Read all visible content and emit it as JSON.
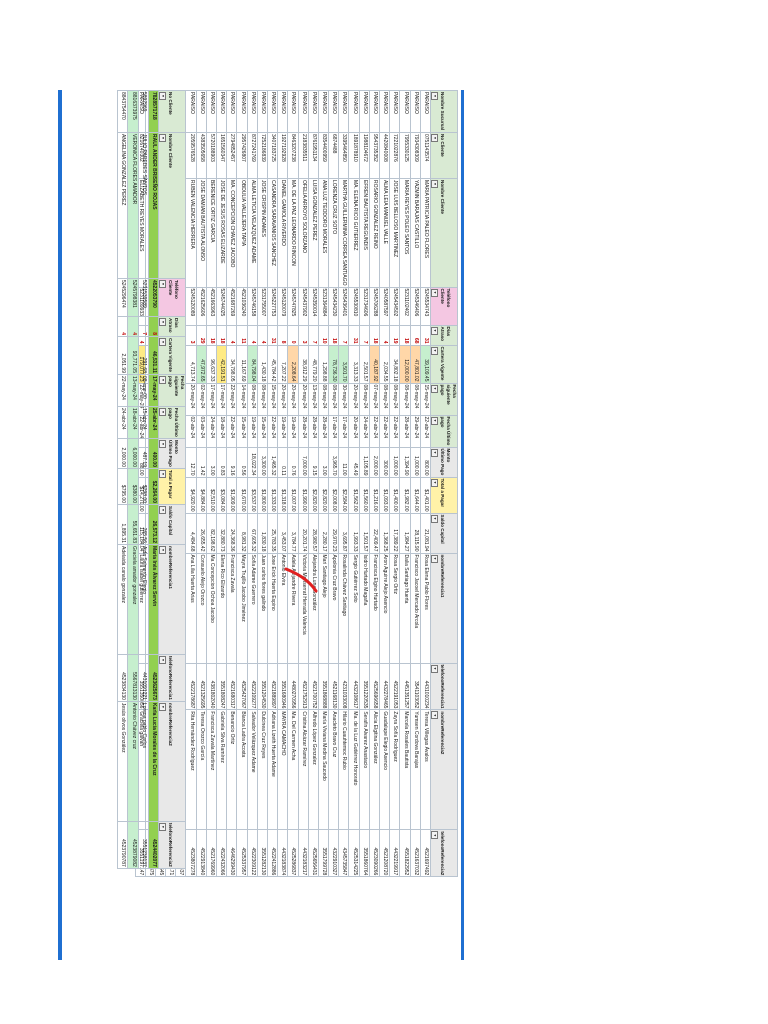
{
  "main_table": {
    "headers": [
      "Nombre Sucursal",
      "No Cliente",
      "Nombre Cliente",
      "Teléfono Cliente",
      "Días Atraso",
      "Cartera Vigente",
      "Fecha siguiente pago",
      "Fecha Último pago",
      "Monto Último Pago",
      "Total a Pagar",
      "Saldo Capital",
      "nombreReferencia1",
      "telefonoReferencia1",
      "nombreReferencia2",
      "telefonoReferencia2"
    ],
    "rows": [
      [
        "PARAISO",
        "0751143574",
        "MARIA PATRICIA PALEO FLORES",
        "5245534743",
        "31",
        "39,109.45",
        "15-may-24",
        "22-abr-24",
        "800.00",
        "$1,401.00",
        "21,081.94",
        "Rosa Elena Pablo Flores",
        "4431010234",
        "Teresa Villegas Ávalos",
        "4521697492"
      ],
      [
        "PARAISO",
        "7934308309",
        "YAZMIN BARAJAS CASTILLO",
        "5245346406",
        "68",
        "47,801.02",
        "08-may-24",
        "29-abr-24",
        "1,000.00",
        "$1,644.00",
        "28,115.90",
        "Francisco Jacoel Mercado Arcola",
        "3541103052",
        "Yumsen Cordova Barajas",
        "4521637032"
      ],
      [
        "PARAISO",
        "7955330125",
        "MARIA REYES POLEO SANTOS",
        "5231102402",
        "18",
        "12,000.00",
        "08-may-24",
        "28-abr-24",
        "1,394.90",
        "$1,982.00",
        "1,984.27",
        "Dalia Santiago Huerta",
        "4451351257",
        "Marcela Rosales Bautista",
        "4551822952"
      ],
      [
        "PARAISO",
        "7221022876",
        "JOSE LUIS BELLOSO MARTINEZ",
        "5245434502",
        "19",
        "34,802.18",
        "08-may-24",
        "22-abr-24",
        "1,000.00",
        "$1,400.00",
        "17,389.22",
        "Rosa Sergio Ortiz",
        "4522191053",
        "Zayra Sofía Rodríguez",
        "4432219917"
      ],
      [
        "PARAISO",
        "4420840008",
        "ALMA LEIA MANUEL VALLE",
        "5240587597",
        "4",
        "2,034.55",
        "08-may-24",
        "22-abr-24",
        "300.00",
        "$1,093.00",
        "1,368.25",
        "Aron Aguirre Alejo Asencio",
        "4432278465",
        "Guadalupe Elegio Asencio",
        "4521208720"
      ],
      [
        "PARAISO",
        "9543735352",
        "ROSARIO GONZALEZ REINO",
        "5245706288",
        "18",
        "40,187.92",
        "07-may-24",
        "22-abr-24",
        "2,000.00",
        "$1,216.00",
        "22,409.47",
        "Francisca Elgino Hurtado",
        "4525696658",
        "Alicia Elgitina González",
        "4523090266"
      ],
      [
        "PARAISO",
        "1988104672",
        "EFREN BAUTISTA REGUNDIS",
        "5231734606",
        "7",
        "2,501.57",
        "08-may-24",
        "24-abr-24",
        "1,105.89",
        "$1,560.00",
        "1,501.57",
        "Isidro Hurtado Magaña",
        "3551220535",
        "Serafin Alvarez Anastacio",
        "3551860764"
      ],
      [
        "PARAISO",
        "1891878910",
        "MA. ELENA RICO GUTIERREZ",
        "5245530810",
        "31",
        "3,313.33",
        "20-may-24",
        "20-abr-24",
        "45.49",
        "$1,562.00",
        "1,993.33",
        "Sergio Gutiérrez Soto",
        "4432108617",
        "Ma. de la Luz Gutiérrez Honorato",
        "4525314225"
      ],
      [
        "PARAISO",
        "3395464850",
        "MARTHA GUILLERMINA CORREA SANTIAGO",
        "5245436401",
        "7",
        "3,501.70",
        "30-may-24",
        "17-abr-24",
        "11.00",
        "$2,584.00",
        "3,695.87",
        "Rosalinda Chávez Santiago",
        "4231033008",
        "Hilario Cuauhtemoc Rubio",
        "4345735847"
      ],
      [
        "PARAISO",
        "6874488",
        "LORENZA CRUZ SOTO",
        "5245434230",
        "18",
        "78,736.30",
        "08-may-24",
        "17-abr-24",
        "3,965.70",
        "$2,008.00",
        "29,970.23",
        "Apolonia Cruz Bravo",
        "4521168130",
        "Anacleto Bravo Cruz",
        "4322910327"
      ],
      [
        "PARAISO",
        "8354400959",
        "ANA LUZ TEODORO MORALES",
        "5231364884",
        "10",
        "1,298.88",
        "08-may-24",
        "28-abr-24",
        "3.00",
        "$2,820.00",
        "2,280.17",
        "Mari Santiago Alejo",
        "3551868888",
        "María Viviana Medina Saucedo",
        "3551799728"
      ],
      [
        "PARAISO",
        "8761951134",
        "LUISA GONZALEZ PEREZ",
        "5245350014",
        "7",
        "48,779.20",
        "13-may-24",
        "28-abr-24",
        "9.15",
        "$2,820.00",
        "28,980.57",
        "Alejandra Luna González",
        "4521700752",
        "Alfredo López Gonzalez",
        "4525656431"
      ],
      [
        "PARAISO",
        "2183835511",
        "OFELIA ARROYO SOLORZANO",
        "5245437902",
        "3",
        "38,912.29",
        "20-may-24",
        "28-abr-24",
        "7,000.00",
        "$1,990.00",
        "20,201.74",
        "Victoria Monserrat Herrada Valencia",
        "4521752913",
        "Cristina Alcázar Ramírez",
        "4432183217"
      ],
      [
        "PARAISO",
        "8463207238",
        "MA. DE LA PAZ LEONARDO RINCON",
        "5245747825",
        "0",
        "2,208.64",
        "20-may-24",
        "19-abr-24",
        "0.76",
        "$1,007.00",
        "3,784.77",
        "Adela Alejandre Rivera",
        "4480270956",
        "Ma. Del Carmen Acha",
        "4525286837"
      ],
      [
        "PARAISO",
        "1927192928",
        "DANIEL GAMIOLA RIVERDO",
        "5245120079",
        "8",
        "7,207.22",
        "20-may-24",
        "19-abr-24",
        "0.11",
        "$1,318.00",
        "3,453.07",
        "Antonio Elvira",
        "3551680946",
        "MAYRA CAMACHO",
        "4432183874"
      ],
      [
        "PARAISO",
        "3407183725",
        "CASANDRA SARAVANIOS SANCHEZ",
        "5245227753",
        "31",
        "45,784.42",
        "15-may-24",
        "22-abr-24",
        "1,465.32",
        "$1,333.00",
        "25,783.35",
        "Jose Erick Huerta Espino",
        "4521889897",
        "Adriana Lizeth Huerta Adame",
        "4522412886"
      ],
      [
        "PARAISO",
        "7252186839",
        "JOSE CRISPIN ADAMES",
        "5231755007",
        "4",
        "1,430.18",
        "08-may-24",
        "15-abr-24",
        "3,300.00",
        "$1,800.00",
        "1,830.18",
        "Juan carlos flores galindo",
        "3551204530",
        "Dulcinea Cruz Reyes",
        "3551282130"
      ],
      [
        "PARAISO",
        "8727241769",
        "ALMA LETICIA VELAZQUEZ ADAME",
        "5245746158",
        "4",
        "84,798.04",
        "08-may-24",
        "19-abr-24",
        "18,022.34",
        "$3,537.00",
        "67,605.32",
        "Sofía Adame Guerrero",
        "4522109277",
        "Salvador Velázquez Adame",
        "4522309122"
      ],
      [
        "PARAISO",
        "2957426807",
        "OBDULIA VALLEJERA TAPIA",
        "4521036240",
        "11",
        "11,167.69",
        "14-may-24",
        "15-abr-24",
        "0.56",
        "$1,670.00",
        "8,981.32",
        "Mayra Trujillo Jacobo Jiménez",
        "4525427067",
        "Blanca Ladra Acosta",
        "4525337957"
      ],
      [
        "PARAISO",
        "2794852457",
        "MA. CONCEPCION CHAVEZ JACOBO",
        "4521687269",
        "4",
        "34,798.05",
        "22-may-24",
        "22-abr-24",
        "9.16",
        "$1,909.00",
        "24,368.36",
        "Francisca Zavala",
        "4521680317",
        "Benancio Ortiz",
        "4646299430"
      ],
      [
        "PARAISO",
        "1651560347",
        "JOSE DE JESUS ROSAS ELIZARDE",
        "5245744025",
        "18",
        "42,191.51",
        "17-may-24",
        "18-abr-24",
        "0.83",
        "$3,084.00",
        "32,880.73",
        "Elena Rico Elizardo",
        "3551808247",
        "Gabriela Silva Ramírez",
        "4522432066"
      ],
      [
        "PARAISO",
        "5720188903",
        "BERENICE ORTIZ GARCIA",
        "4521663963",
        "18",
        "96,637.33",
        "17-may-24",
        "24-abr-24",
        "3.00",
        "$2,510.00",
        "82,198.62",
        "Ma Concepcion Ochoa Jacobo",
        "4381802040",
        "Francisca Zavala Martínez",
        "4521769960"
      ],
      [
        "PARAISO",
        "4383505658",
        "JOSE DAMIAN BAUTISTA ALONSO",
        "4521625606",
        "29",
        "47,972.65",
        "02-may-24",
        "03-abr-24",
        "1.42",
        "$4,884.00",
        "26,655.42",
        "Consuelo Alejo Orozco",
        "4521325695",
        "Teresa Orozco García",
        "4522913840"
      ],
      [
        "PARAISO",
        "2059576528",
        "RUBEN VALENCIA HERRERA",
        "5245120089",
        "3",
        "4,713.74",
        "20-may-24",
        "02-abr-24",
        "12.70",
        "$4,920.00",
        "4,484.68",
        "Ana Lilia Huerta Arias",
        "4522178687",
        "Rita Hernández Rodríguez",
        "4523807278"
      ],
      [
        "PARAISO",
        "1880015812",
        "DANIEL JOEL GUTIERREZ SANTELIANO",
        "5231302787",
        "10",
        "3,881.65",
        "08-ene-00",
        "15-abr-24",
        "0.00",
        "$1,700.00",
        "3,881.65",
        "María Valenzuela Aguilera",
        "3541800858",
        "Ana Pamela Gutiérrez Ortiz",
        "4523075437"
      ],
      [
        "PARAISO",
        "7951718979",
        "JONATHAN ANTONIO SALGADO",
        "5231220887",
        "8",
        "7,104.51",
        "08-ene-00",
        "18-abr-24",
        "288.74",
        "$1,000.00",
        "6,898.40",
        "Karina Valencia Caceres",
        "4432193676",
        "Ángel Pueblo Rodríguez",
        "4432188171"
      ],
      [
        "PARAISO",
        "4479631419",
        "JULIO PAREDES CACERES",
        "5231744001",
        "4",
        "7,839.43",
        "08-ene-00",
        "20-abr-24",
        "0.02",
        "$2,790.00",
        "6,172.24",
        "Mixto de Lourdes Figueroa Silva",
        "4523483135",
        "Salvador Silva Caceri",
        "4522781645"
      ],
      [
        "PARAISO",
        "22213519",
        "ROSA BRENDA REYES RUIZ",
        "4522385389",
        "4",
        "41,957.28",
        "22-may-24",
        "22-abr-24",
        "5.84",
        "$11,509.00",
        "20,762.41",
        "Guadalupe González Morales",
        "4522457013",
        "Raúl López Figueroa",
        "4522395875"
      ],
      [
        "PARAISO",
        "8216740302",
        "ELIZABETH REYES MORALES",
        "5231189933",
        "4",
        "179,077.23",
        "22-may-24",
        "22-abr-24",
        "88.00",
        "$14,270.00",
        "115,184.04",
        "Laura Isabel gutierrez",
        "3551350056",
        "Graciela galvan",
        "3551197147"
      ]
    ]
  },
  "summary_table": {
    "headers": [
      "No Cliente",
      "Nombre Cliente",
      "Teléfono Cliente",
      "Días Atraso",
      "Cartera Vigente",
      "Fecha siguiente pago",
      "Fecha Último pago",
      "Monto Último Pago",
      "Total a Pagar",
      "Saldo Capital",
      "nombreReferencia1",
      "telefonoReferencia1",
      "nombreReferencia2",
      "telefonoReferencia2"
    ],
    "rows": [
      [
        "7828571718",
        "RAUL ANDER BRISEÑO ROJAS",
        "4522053790",
        "8",
        "46,531.11",
        "17-may-24",
        "25-abr-24",
        "400.00",
        "$2,264.00",
        "26,573.12",
        "María Inés Álvarez Servín",
        "4523625673",
        "Karla Lucia Morales de la Cruz",
        "4524402077"
      ],
      [
        "5892969",
        "JULIO PAREDES SANTOS",
        "5231539589",
        "7",
        "291.68",
        "08-ene-00",
        "15-abr-24",
        "487.19",
        "$298.00",
        "265.56",
        "Aida Salmerón Elegio",
        "4431091221",
        "Lorena pablo Carlos",
        "3551238137"
      ],
      [
        "8816373975",
        "VERONICA FLORES AMADOR",
        "5245798381",
        "4",
        "93,771.05",
        "13-may-24",
        "18-abr-24",
        "6,000.00",
        "$380.00",
        "55,651.83",
        "Graciela amador gonzalez",
        "5567813130",
        "Antonio Chávez cruz",
        "4523879082"
      ],
      [
        "8843754470",
        "ANGELINA GONZALEZ PEREZ",
        "5245296474",
        "4",
        "2,051.99",
        "22-may-24",
        "24-abr-24",
        "2,000.00",
        "$795.00",
        "1,895.31",
        "Adelaida canalo gonzalez",
        "4523834130",
        "Jesús olivos González",
        "4523790787"
      ]
    ]
  },
  "colors": {
    "header_green": "#d9ead3",
    "total_green": "#92d050",
    "highlight_green": "#c6efce",
    "highlight_orange": "#ffd7a8",
    "highlight_yellow": "#ffeb84",
    "accent_blue": "#1f6fd1",
    "mark_red": "#e02020"
  },
  "icons": {
    "filter": "filter-dropdown-icon"
  }
}
